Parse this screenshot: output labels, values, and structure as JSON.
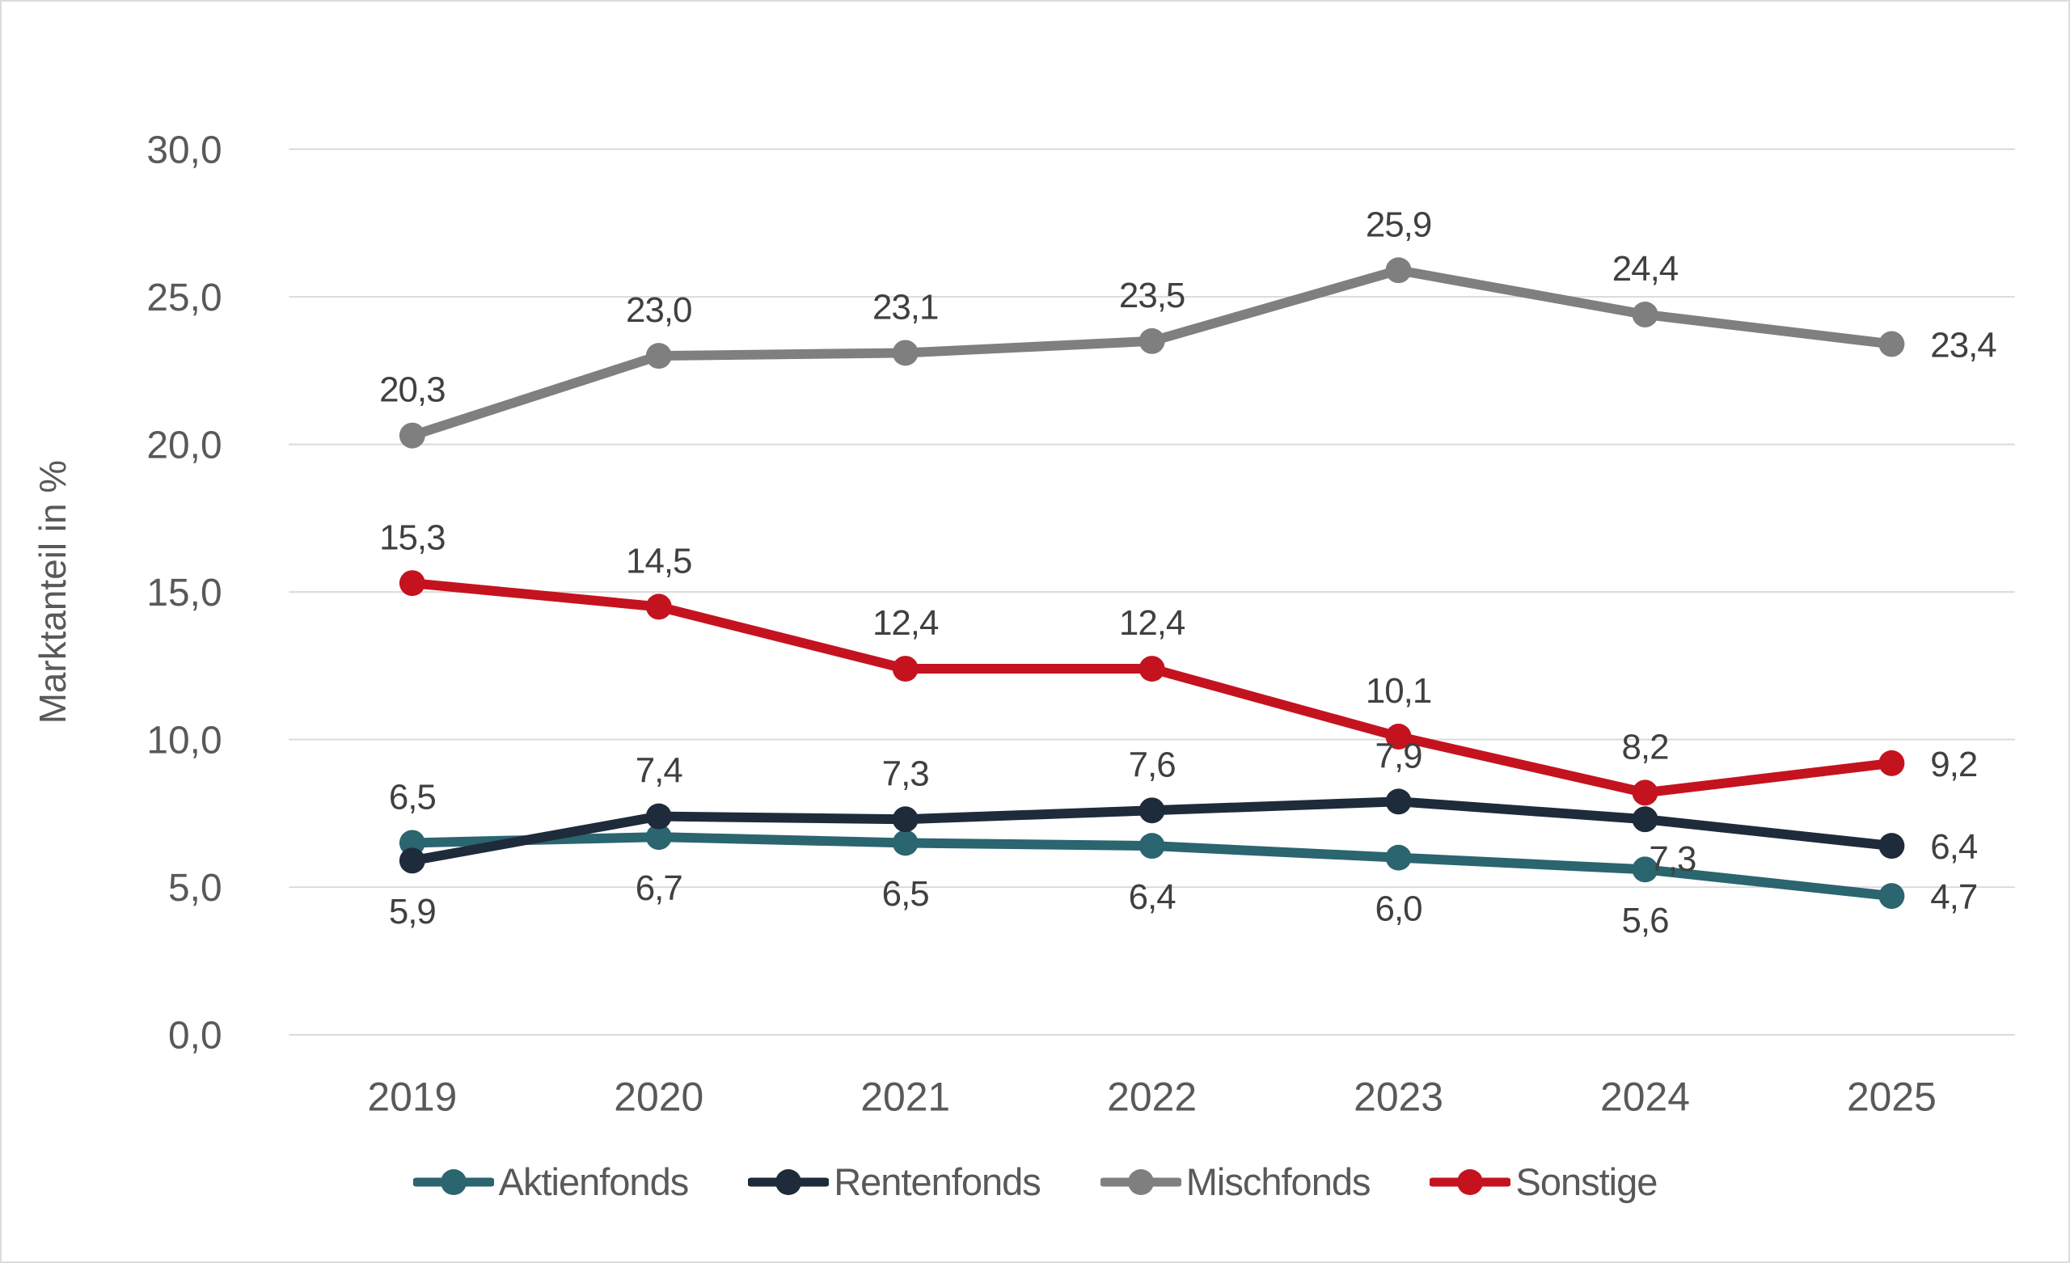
{
  "chart_data": {
    "type": "line",
    "title": "",
    "xlabel": "",
    "ylabel": "Marktanteil in %",
    "categories": [
      "2019",
      "2020",
      "2021",
      "2022",
      "2023",
      "2024",
      "2025"
    ],
    "ylim": [
      0,
      30
    ],
    "ytick_step": 5,
    "ytick_labels": [
      "0,0",
      "5,0",
      "10,0",
      "15,0",
      "20,0",
      "25,0",
      "30,0"
    ],
    "grid": "horizontal",
    "legend_position": "bottom",
    "decimal_separator": ",",
    "series": [
      {
        "name": "Aktienfonds",
        "color": "#2A6570",
        "values": [
          6.5,
          6.7,
          6.5,
          6.4,
          6.0,
          5.6,
          4.7
        ],
        "data_labels": [
          "6,5",
          "6,7",
          "6,5",
          "6,4",
          "6,0",
          "5,6",
          "4,7"
        ],
        "label_positions": [
          "above",
          "below",
          "below",
          "below",
          "below",
          "below",
          "right"
        ]
      },
      {
        "name": "Rentenfonds",
        "color": "#1E2B3A",
        "values": [
          5.9,
          7.4,
          7.3,
          7.6,
          7.9,
          7.3,
          6.4
        ],
        "data_labels": [
          "5,9",
          "7,4",
          "7,3",
          "7,6",
          "7,9",
          "7,3",
          "6,4"
        ],
        "label_positions": [
          "below",
          "above",
          "above",
          "above",
          "above",
          "below-right",
          "right"
        ]
      },
      {
        "name": "Mischfonds",
        "color": "#7F7F7F",
        "values": [
          20.3,
          23.0,
          23.1,
          23.5,
          25.9,
          24.4,
          23.4
        ],
        "data_labels": [
          "20,3",
          "23,0",
          "23,1",
          "23,5",
          "25,9",
          "24,4",
          "23,4"
        ],
        "label_positions": [
          "above",
          "above",
          "above",
          "above",
          "above",
          "above",
          "right"
        ]
      },
      {
        "name": "Sonstige",
        "color": "#C4131F",
        "values": [
          15.3,
          14.5,
          12.4,
          12.4,
          10.1,
          8.2,
          9.2
        ],
        "data_labels": [
          "15,3",
          "14,5",
          "12,4",
          "12,4",
          "10,1",
          "8,2",
          "9,2"
        ],
        "label_positions": [
          "above",
          "above",
          "above",
          "above",
          "above",
          "above",
          "right"
        ]
      }
    ],
    "colors": {
      "grid": "#D9D9D9",
      "axis_text": "#595959",
      "data_label": "#404040",
      "background": "#FFFFFF",
      "border": "#DCDCDC"
    }
  }
}
